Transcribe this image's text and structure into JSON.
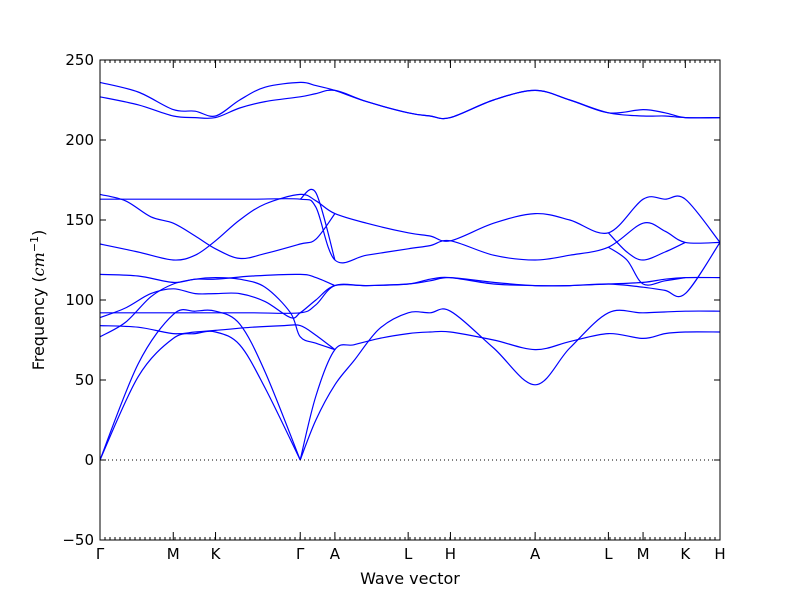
{
  "chart_data": {
    "type": "line",
    "xlabel": "Wave vector",
    "ylabel_main": "Frequency (",
    "ylabel_math": "cm",
    "ylabel_sup": "−1",
    "ylabel_close": ")",
    "ylim": [
      -50,
      250
    ],
    "y_ticks": [
      -50,
      0,
      50,
      100,
      150,
      200,
      250
    ],
    "x_ticks": [
      {
        "label": "Γ",
        "x": 0.0
      },
      {
        "label": "M",
        "x": 0.577
      },
      {
        "label": "K",
        "x": 0.91
      },
      {
        "label": "Γ",
        "x": 1.577
      },
      {
        "label": "A",
        "x": 1.85
      },
      {
        "label": "L",
        "x": 2.427
      },
      {
        "label": "H",
        "x": 2.76
      },
      {
        "label": "A",
        "x": 3.427
      },
      {
        "label": "L",
        "x": 4.004
      },
      {
        "label": "M",
        "x": 4.277
      },
      {
        "label": "K",
        "x": 4.61
      },
      {
        "label": "H",
        "x": 4.883
      }
    ],
    "xlim": [
      0,
      4.883
    ],
    "zero_line": true,
    "line_color": "#0000ff",
    "series": [
      {
        "points": [
          [
            0,
            0
          ],
          [
            0.3,
            60
          ],
          [
            0.577,
            91
          ],
          [
            0.75,
            93
          ],
          [
            0.91,
            93
          ],
          [
            1.1,
            85
          ],
          [
            1.3,
            55
          ],
          [
            1.577,
            0
          ]
        ]
      },
      {
        "points": [
          [
            0,
            0
          ],
          [
            0.3,
            52
          ],
          [
            0.577,
            76
          ],
          [
            0.75,
            79
          ],
          [
            0.91,
            80
          ],
          [
            1.1,
            72
          ],
          [
            1.3,
            45
          ],
          [
            1.577,
            0
          ]
        ]
      },
      {
        "points": [
          [
            1.577,
            0
          ],
          [
            1.7,
            25
          ],
          [
            1.85,
            47
          ],
          [
            2.0,
            62
          ],
          [
            2.2,
            82
          ],
          [
            2.427,
            92
          ],
          [
            2.6,
            92
          ],
          [
            2.76,
            93
          ],
          [
            3.1,
            70
          ],
          [
            3.427,
            47
          ],
          [
            3.7,
            70
          ],
          [
            4.004,
            92
          ],
          [
            4.277,
            92
          ],
          [
            4.61,
            93
          ],
          [
            4.883,
            93
          ]
        ]
      },
      {
        "points": [
          [
            1.577,
            0
          ],
          [
            1.7,
            40
          ],
          [
            1.85,
            69
          ],
          [
            2.0,
            72
          ],
          [
            2.2,
            76
          ],
          [
            2.427,
            79
          ],
          [
            2.6,
            80
          ],
          [
            2.76,
            80
          ],
          [
            3.1,
            75
          ],
          [
            3.427,
            69
          ],
          [
            3.7,
            74
          ],
          [
            4.004,
            79
          ],
          [
            4.277,
            76
          ],
          [
            4.45,
            79
          ],
          [
            4.61,
            80
          ],
          [
            4.883,
            80
          ]
        ]
      },
      {
        "points": [
          [
            0,
            77
          ],
          [
            0.2,
            86
          ],
          [
            0.4,
            102
          ],
          [
            0.577,
            110
          ],
          [
            0.75,
            113
          ],
          [
            0.91,
            114
          ],
          [
            1.1,
            113
          ],
          [
            1.3,
            108
          ],
          [
            1.5,
            92
          ],
          [
            1.577,
            77
          ],
          [
            1.7,
            73
          ],
          [
            1.85,
            69
          ]
        ]
      },
      {
        "points": [
          [
            0,
            84
          ],
          [
            0.3,
            83
          ],
          [
            0.577,
            79
          ],
          [
            0.75,
            80
          ],
          [
            0.91,
            81
          ],
          [
            1.2,
            83
          ],
          [
            1.45,
            84
          ],
          [
            1.577,
            84
          ],
          [
            1.7,
            78
          ],
          [
            1.85,
            69
          ]
        ]
      },
      {
        "points": [
          [
            0,
            92
          ],
          [
            0.3,
            92
          ],
          [
            0.577,
            92
          ],
          [
            0.91,
            92
          ],
          [
            1.2,
            92
          ],
          [
            1.577,
            92
          ],
          [
            1.7,
            97
          ],
          [
            1.85,
            109
          ],
          [
            2.1,
            109
          ],
          [
            2.427,
            110
          ],
          [
            2.6,
            113
          ],
          [
            2.76,
            114
          ],
          [
            3.1,
            110
          ],
          [
            3.427,
            109
          ],
          [
            3.7,
            109
          ],
          [
            4.004,
            110
          ],
          [
            4.277,
            111
          ],
          [
            4.45,
            113
          ],
          [
            4.61,
            114
          ],
          [
            4.883,
            114
          ]
        ]
      },
      {
        "points": [
          [
            0,
            89
          ],
          [
            0.2,
            95
          ],
          [
            0.4,
            104
          ],
          [
            0.577,
            107
          ],
          [
            0.75,
            104
          ],
          [
            0.91,
            104
          ],
          [
            1.1,
            104
          ],
          [
            1.3,
            99
          ],
          [
            1.5,
            89
          ],
          [
            1.577,
            92
          ],
          [
            1.7,
            100
          ],
          [
            1.85,
            109
          ],
          [
            2.1,
            109
          ],
          [
            2.427,
            110
          ],
          [
            2.6,
            112
          ],
          [
            2.76,
            114
          ],
          [
            3.1,
            111
          ],
          [
            3.427,
            109
          ],
          [
            3.7,
            109
          ],
          [
            4.004,
            110
          ],
          [
            4.277,
            108
          ],
          [
            4.45,
            106
          ],
          [
            4.61,
            104
          ],
          [
            4.883,
            136
          ]
        ]
      },
      {
        "points": [
          [
            0,
            116
          ],
          [
            0.3,
            115
          ],
          [
            0.577,
            111
          ],
          [
            0.75,
            113
          ],
          [
            0.91,
            113
          ],
          [
            1.2,
            115
          ],
          [
            1.577,
            116
          ],
          [
            1.7,
            114
          ],
          [
            1.85,
            109
          ]
        ]
      },
      {
        "points": [
          [
            0,
            135
          ],
          [
            0.3,
            130
          ],
          [
            0.577,
            125
          ],
          [
            0.75,
            128
          ],
          [
            0.91,
            137
          ],
          [
            1.1,
            150
          ],
          [
            1.3,
            160
          ],
          [
            1.577,
            166
          ],
          [
            1.7,
            162
          ],
          [
            1.85,
            154
          ],
          [
            2.1,
            148
          ],
          [
            2.427,
            142
          ],
          [
            2.6,
            140
          ],
          [
            2.76,
            137
          ],
          [
            3.1,
            148
          ],
          [
            3.427,
            154
          ],
          [
            3.7,
            150
          ],
          [
            4.004,
            142
          ],
          [
            4.277,
            163
          ],
          [
            4.45,
            163
          ],
          [
            4.61,
            163
          ],
          [
            4.883,
            136
          ]
        ]
      },
      {
        "points": [
          [
            0,
            166
          ],
          [
            0.2,
            162
          ],
          [
            0.4,
            152
          ],
          [
            0.577,
            148
          ],
          [
            0.75,
            140
          ],
          [
            0.91,
            132
          ],
          [
            1.1,
            126
          ],
          [
            1.3,
            129
          ],
          [
            1.577,
            135
          ],
          [
            1.7,
            138
          ],
          [
            1.85,
            154
          ]
        ]
      },
      {
        "points": [
          [
            0,
            163
          ],
          [
            0.3,
            163
          ],
          [
            0.577,
            163
          ],
          [
            0.91,
            163
          ],
          [
            1.2,
            163
          ],
          [
            1.577,
            163
          ],
          [
            1.7,
            158
          ],
          [
            1.85,
            125
          ],
          [
            2.1,
            128
          ],
          [
            2.427,
            132
          ],
          [
            2.6,
            134
          ],
          [
            2.76,
            137
          ],
          [
            3.1,
            128
          ],
          [
            3.427,
            125
          ],
          [
            3.7,
            128
          ],
          [
            4.004,
            133
          ],
          [
            4.277,
            148
          ],
          [
            4.45,
            143
          ],
          [
            4.61,
            136
          ],
          [
            4.883,
            136
          ]
        ]
      },
      {
        "points": [
          [
            1.577,
            163
          ],
          [
            1.7,
            167
          ],
          [
            1.85,
            125
          ]
        ]
      },
      {
        "points": [
          [
            4.004,
            133
          ],
          [
            4.15,
            125
          ],
          [
            4.277,
            110
          ],
          [
            4.45,
            112
          ],
          [
            4.61,
            114
          ]
        ]
      },
      {
        "points": [
          [
            4.004,
            142
          ],
          [
            4.15,
            130
          ],
          [
            4.277,
            125
          ],
          [
            4.45,
            130
          ],
          [
            4.61,
            136
          ]
        ]
      },
      {
        "points": [
          [
            0,
            236
          ],
          [
            0.3,
            230
          ],
          [
            0.577,
            219
          ],
          [
            0.75,
            218
          ],
          [
            0.91,
            215
          ],
          [
            1.1,
            225
          ],
          [
            1.3,
            233
          ],
          [
            1.577,
            236
          ],
          [
            1.7,
            234
          ],
          [
            1.85,
            231
          ],
          [
            2.1,
            224
          ],
          [
            2.427,
            217
          ],
          [
            2.6,
            215
          ],
          [
            2.76,
            214
          ],
          [
            3.1,
            225
          ],
          [
            3.427,
            231
          ],
          [
            3.7,
            225
          ],
          [
            4.004,
            217
          ],
          [
            4.277,
            219
          ],
          [
            4.45,
            217
          ],
          [
            4.61,
            214
          ],
          [
            4.883,
            214
          ]
        ]
      },
      {
        "points": [
          [
            0,
            227
          ],
          [
            0.3,
            222
          ],
          [
            0.577,
            215
          ],
          [
            0.75,
            214
          ],
          [
            0.91,
            214
          ],
          [
            1.1,
            220
          ],
          [
            1.3,
            224
          ],
          [
            1.577,
            227
          ],
          [
            1.7,
            229
          ],
          [
            1.85,
            231
          ],
          [
            2.1,
            224
          ],
          [
            2.427,
            217
          ],
          [
            2.6,
            215
          ],
          [
            2.76,
            214
          ],
          [
            3.1,
            225
          ],
          [
            3.427,
            231
          ],
          [
            3.7,
            225
          ],
          [
            4.004,
            217
          ],
          [
            4.277,
            215
          ],
          [
            4.45,
            215
          ],
          [
            4.61,
            214
          ],
          [
            4.883,
            214
          ]
        ]
      }
    ]
  }
}
